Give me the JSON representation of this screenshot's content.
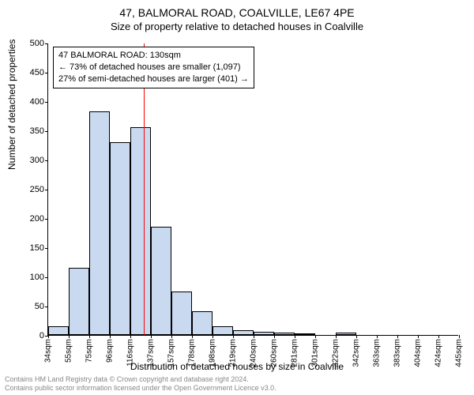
{
  "title_main": "47, BALMORAL ROAD, COALVILLE, LE67 4PE",
  "title_sub": "Size of property relative to detached houses in Coalville",
  "ylabel": "Number of detached properties",
  "xlabel": "Distribution of detached houses by size in Coalville",
  "footer_line1": "Contains HM Land Registry data © Crown copyright and database right 2024.",
  "footer_line2": "Contains public sector information licensed under the Open Government Licence v3.0.",
  "chart": {
    "type": "histogram",
    "ylim": [
      0,
      500
    ],
    "ytick_step": 50,
    "xtick_labels": [
      "34sqm",
      "55sqm",
      "75sqm",
      "96sqm",
      "116sqm",
      "137sqm",
      "157sqm",
      "178sqm",
      "198sqm",
      "219sqm",
      "240sqm",
      "260sqm",
      "281sqm",
      "301sqm",
      "322sqm",
      "342sqm",
      "363sqm",
      "383sqm",
      "404sqm",
      "424sqm",
      "445sqm"
    ],
    "bar_values": [
      15,
      115,
      382,
      330,
      355,
      185,
      75,
      40,
      15,
      8,
      5,
      4,
      3,
      0,
      4,
      0,
      0,
      0,
      0,
      0
    ],
    "bar_fill": "#c8d9f0",
    "bar_border": "#000000",
    "marker_position_sqm": 130,
    "marker_color": "#ff0000",
    "annotation": {
      "line1": "47 BALMORAL ROAD: 130sqm",
      "line2": "← 73% of detached houses are smaller (1,097)",
      "line3": "27% of semi-detached houses are larger (401) →"
    },
    "background": "#ffffff",
    "axis_color": "#000000",
    "tick_fontsize": 10,
    "label_fontsize": 12,
    "title_fontsize": 14
  }
}
